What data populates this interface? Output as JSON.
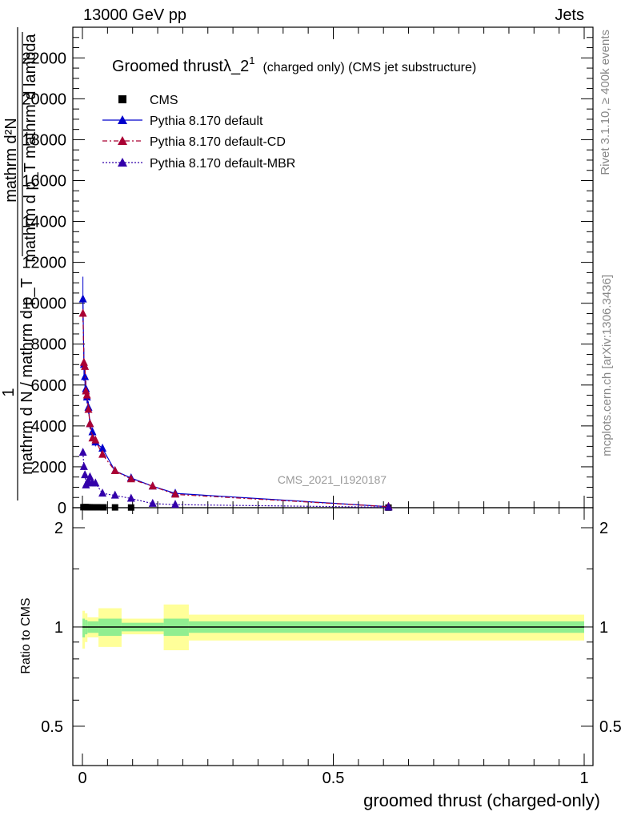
{
  "header": {
    "left": "13000 GeV pp",
    "right": "Jets"
  },
  "side_labels": {
    "rivet": "Rivet 3.1.10, ≥ 400k events",
    "mcplots": "mcplots.cern.ch [arXiv:1306.3436]"
  },
  "watermark": "CMS_2021_I1920187",
  "chart_data": [
    {
      "panel": "main",
      "type": "line",
      "title": "Groomed thrustλ_2¹ (charged only) (CMS jet substructure)",
      "title_parts": {
        "main": "Groomed thrust",
        "lambda": "λ_2",
        "sup": "1",
        "sub": "(charged only) (CMS jet substructure)"
      },
      "ylabel_parts": {
        "one": "1",
        "denominator": "mathrm d N / mathrm d p_T",
        "numerator_top": "mathrm d²N",
        "numerator_bottom": "mathrm d p_T mathrm d lambda"
      },
      "xlim": [
        0,
        1
      ],
      "ylim": [
        0,
        23500
      ],
      "y_ticks": [
        {
          "value": 0,
          "label": "0"
        },
        {
          "value": 2000,
          "label": "2000"
        },
        {
          "value": 4000,
          "label": "4000"
        },
        {
          "value": 6000,
          "label": "6000"
        },
        {
          "value": 8000,
          "label": "8000"
        },
        {
          "value": 10000,
          "label": "10000"
        },
        {
          "value": 12000,
          "label": "12000"
        },
        {
          "value": 14000,
          "label": "14000"
        },
        {
          "value": 16000,
          "label": "16000"
        },
        {
          "value": 18000,
          "label": "18000"
        },
        {
          "value": 20000,
          "label": "20000"
        },
        {
          "value": 22000,
          "label": "22000"
        }
      ],
      "legend_placement": "top-left",
      "series": [
        {
          "name": "CMS",
          "marker": "square",
          "color": "#000000",
          "x": [
            0.002,
            0.006,
            0.01,
            0.015,
            0.02,
            0.03,
            0.042,
            0.065,
            0.097,
            0.61
          ],
          "y": [
            25,
            30,
            25,
            22,
            20,
            20,
            18,
            15,
            10,
            5
          ]
        },
        {
          "name": "Pythia 8.170 default",
          "marker": "triangle",
          "line": "solid",
          "color": "#0000cc",
          "x": [
            0.001,
            0.003,
            0.005,
            0.007,
            0.009,
            0.012,
            0.015,
            0.02,
            0.026,
            0.04,
            0.065,
            0.097,
            0.14,
            0.185,
            0.61
          ],
          "y": [
            10200,
            7000,
            6400,
            5800,
            5400,
            4900,
            4100,
            3700,
            3200,
            2900,
            1800,
            1450,
            1050,
            700,
            50
          ],
          "yerr": [
            1100,
            800,
            500,
            400,
            300,
            300,
            250,
            200,
            200,
            150,
            100,
            80,
            60,
            40,
            10
          ]
        },
        {
          "name": "Pythia 8.170 default-CD",
          "marker": "triangle",
          "line": "dashdot",
          "color": "#aa0033",
          "x": [
            0.001,
            0.003,
            0.005,
            0.007,
            0.009,
            0.012,
            0.015,
            0.02,
            0.026,
            0.04,
            0.065,
            0.097,
            0.14,
            0.185,
            0.61
          ],
          "y": [
            9500,
            7100,
            6900,
            5700,
            5500,
            4800,
            4100,
            3400,
            3300,
            2600,
            1800,
            1400,
            1050,
            650,
            50
          ]
        },
        {
          "name": "Pythia 8.170 default-MBR",
          "marker": "triangle",
          "line": "dotted",
          "color": "#3300aa",
          "x": [
            0.001,
            0.003,
            0.005,
            0.007,
            0.009,
            0.012,
            0.015,
            0.02,
            0.026,
            0.04,
            0.065,
            0.097,
            0.14,
            0.185,
            0.61
          ],
          "y": [
            2700,
            2000,
            1600,
            1100,
            1200,
            1300,
            1500,
            1200,
            1200,
            700,
            600,
            450,
            200,
            150,
            20
          ]
        }
      ]
    },
    {
      "panel": "ratio",
      "type": "area",
      "ylabel": "Ratio to CMS",
      "xlabel": "groomed thrust (charged-only)",
      "xlim": [
        0,
        1
      ],
      "ylim": [
        0.38,
        2.3
      ],
      "log_y": true,
      "x_ticks": [
        {
          "value": 0,
          "label": "0"
        },
        {
          "value": 0.5,
          "label": "0.5"
        },
        {
          "value": 1,
          "label": "1"
        }
      ],
      "y_ticks": [
        {
          "value": 0.5,
          "label": "0.5"
        },
        {
          "value": 1,
          "label": "1"
        },
        {
          "value": 2,
          "label": "2"
        }
      ],
      "bands": [
        {
          "x0": 0.0,
          "x1": 0.005,
          "inner": [
            0.93,
            1.06
          ],
          "outer": [
            0.86,
            1.12
          ]
        },
        {
          "x0": 0.005,
          "x1": 0.01,
          "inner": [
            0.95,
            1.05
          ],
          "outer": [
            0.9,
            1.1
          ]
        },
        {
          "x0": 0.01,
          "x1": 0.032,
          "inner": [
            0.96,
            1.04
          ],
          "outer": [
            0.93,
            1.07
          ]
        },
        {
          "x0": 0.032,
          "x1": 0.078,
          "inner": [
            0.94,
            1.06
          ],
          "outer": [
            0.87,
            1.14
          ]
        },
        {
          "x0": 0.078,
          "x1": 0.162,
          "inner": [
            0.97,
            1.03
          ],
          "outer": [
            0.95,
            1.06
          ]
        },
        {
          "x0": 0.162,
          "x1": 0.212,
          "inner": [
            0.94,
            1.06
          ],
          "outer": [
            0.85,
            1.17
          ]
        },
        {
          "x0": 0.212,
          "x1": 1.0,
          "inner": [
            0.96,
            1.04
          ],
          "outer": [
            0.91,
            1.09
          ]
        }
      ],
      "inner_color": "#90ee90",
      "outer_color": "#ffff99",
      "reference_line": 1
    }
  ]
}
